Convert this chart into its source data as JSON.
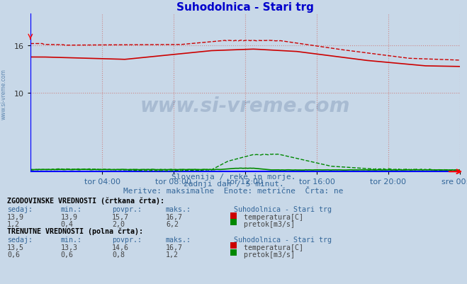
{
  "title": "Suhodolnica - Stari trg",
  "title_color": "#0000cc",
  "bg_color": "#c8d8e8",
  "plot_bg_color": "#c8d8e8",
  "xlabel_ticks": [
    "tor 04:00",
    "tor 08:00",
    "tor 12:00",
    "tor 16:00",
    "tor 20:00",
    "sre 00:00"
  ],
  "x_tick_positions": [
    0.167,
    0.333,
    0.5,
    0.667,
    0.833,
    1.0
  ],
  "ylim_temp": [
    0,
    20
  ],
  "ytick_vals": [
    10,
    16
  ],
  "grid_color": "#cc8888",
  "subtitle1": "Slovenija / reke in morje.",
  "subtitle2": "zadnji dan / 5 minut.",
  "subtitle3": "Meritve: maksimalne  Enote: metrične  Črta: ne",
  "subtitle_color": "#336699",
  "watermark": "www.si-vreme.com",
  "watermark_color": "#1a3a6e",
  "left_label": "www.si-vreme.com",
  "temp_color": "#cc0000",
  "flow_color": "#008800",
  "blue_color": "#0000ff",
  "hist_temp_sedaj": "13,9",
  "hist_temp_min": "13,9",
  "hist_temp_povpr": "15,7",
  "hist_temp_maks": "16,7",
  "hist_flow_sedaj": "1,2",
  "hist_flow_min": "0,4",
  "hist_flow_povpr": "2,0",
  "hist_flow_maks": "6,2",
  "curr_temp_sedaj": "13,5",
  "curr_temp_min": "13,3",
  "curr_temp_povpr": "14,6",
  "curr_temp_maks": "16,7",
  "curr_flow_sedaj": "0,6",
  "curr_flow_min": "0,6",
  "curr_flow_povpr": "0,8",
  "curr_flow_maks": "1,2"
}
